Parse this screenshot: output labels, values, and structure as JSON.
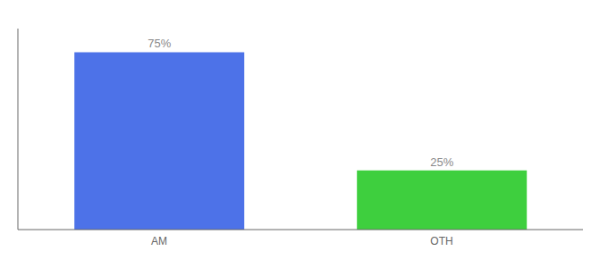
{
  "chart_data": {
    "type": "bar",
    "categories": [
      "AM",
      "OTH"
    ],
    "values": [
      75,
      25
    ],
    "value_labels": [
      "75%",
      "25%"
    ],
    "colors": [
      "#4d72e8",
      "#3ecf3e"
    ],
    "ylim": [
      0,
      85
    ],
    "data_labels": true,
    "tick_labels": "x",
    "grid": false
  }
}
